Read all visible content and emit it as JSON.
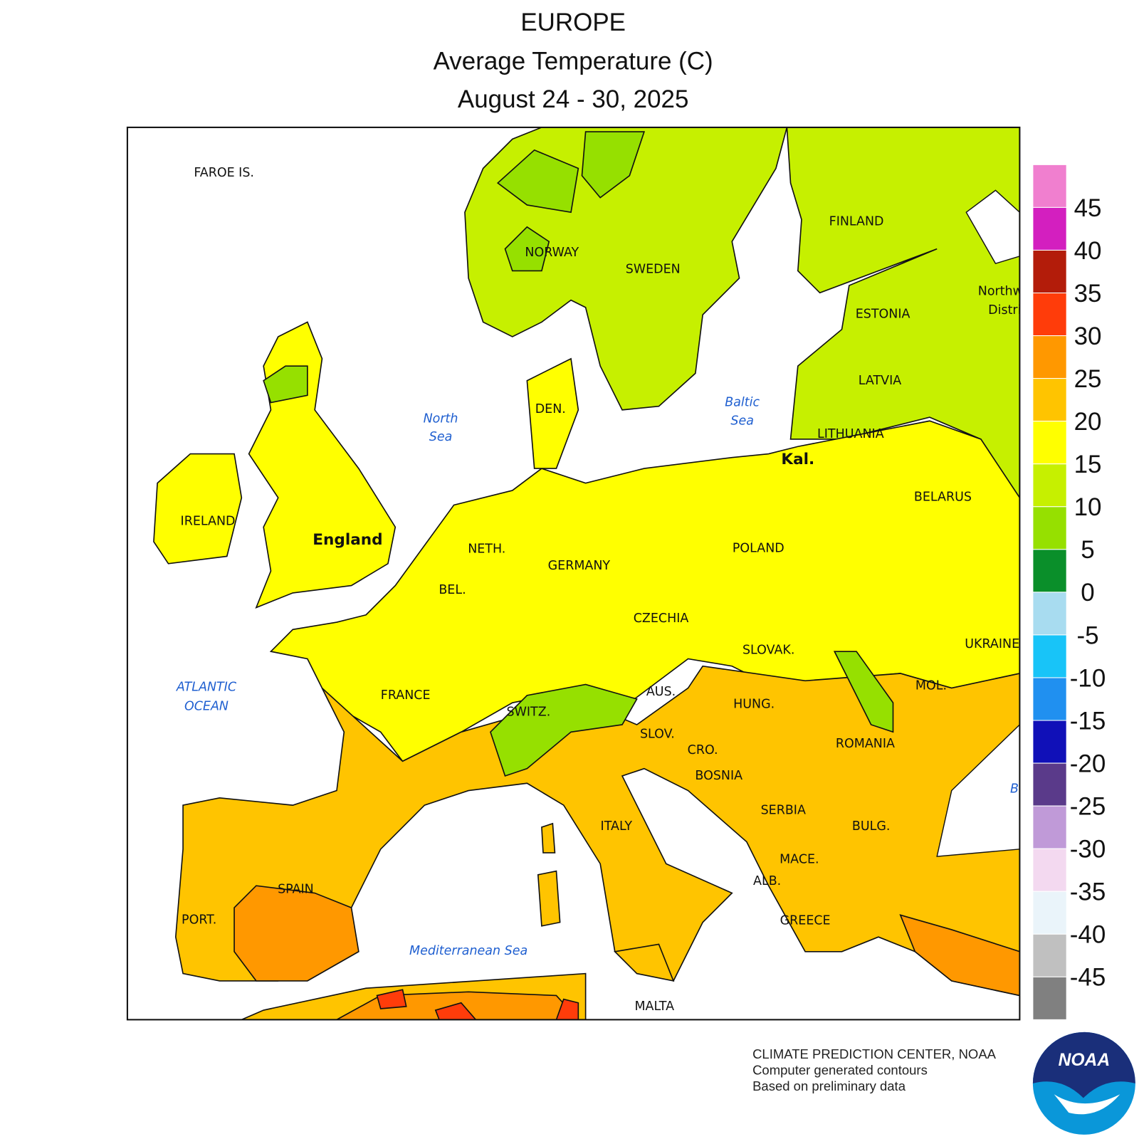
{
  "header": {
    "title": "EUROPE",
    "subtitle": "Average Temperature (C)",
    "date": "August 24 - 30, 2025"
  },
  "labels": [
    "FAROE IS.",
    "NORWAY",
    "SWEDEN",
    "FINLAND",
    "ESTONIA",
    "LATVIA",
    "LITHUANIA",
    "Kal.",
    "BELARUS",
    "DEN.",
    "IRELAND",
    "England",
    "NETH.",
    "GERMANY",
    "POLAND",
    "BEL.",
    "CZECHIA",
    "SLOVAK.",
    "UKRAINE",
    "FRANCE",
    "SWITZ.",
    "AUS.",
    "HUNG.",
    "MOL.",
    "SLOV.",
    "CRO.",
    "ROMANIA",
    "BOSNIA",
    "SERBIA",
    "ITALY",
    "BULG.",
    "MACE.",
    "ALB.",
    "SPAIN",
    "PORT.",
    "GREECE",
    "MALTA",
    "Northw",
    "Distri"
  ],
  "seas": [
    "North",
    "Sea",
    "Baltic",
    "Sea",
    "ATLANTIC",
    "OCEAN",
    "Mediterranean Sea",
    "B"
  ],
  "legend": {
    "ticks": [
      45,
      40,
      35,
      30,
      25,
      20,
      15,
      10,
      5,
      0,
      -5,
      -10,
      -15,
      -20,
      -25,
      -30,
      -35,
      -40,
      -45
    ],
    "colors": [
      "#f07fcf",
      "#d31fbf",
      "#b31c0a",
      "#ff3c0a",
      "#ff9800",
      "#ffc400",
      "#ffff00",
      "#c6f000",
      "#96e000",
      "#0a8f2a",
      "#a8dcf0",
      "#18c4f8",
      "#2090f0",
      "#1010b8",
      "#5a3a8a",
      "#c09ad8",
      "#f3d9f0",
      "#eaf4fa",
      "#c0c0c0",
      "#808080"
    ]
  },
  "credits": [
    "CLIMATE PREDICTION CENTER, NOAA",
    "Computer generated contours",
    "Based on preliminary data"
  ],
  "logo": "NOAA"
}
